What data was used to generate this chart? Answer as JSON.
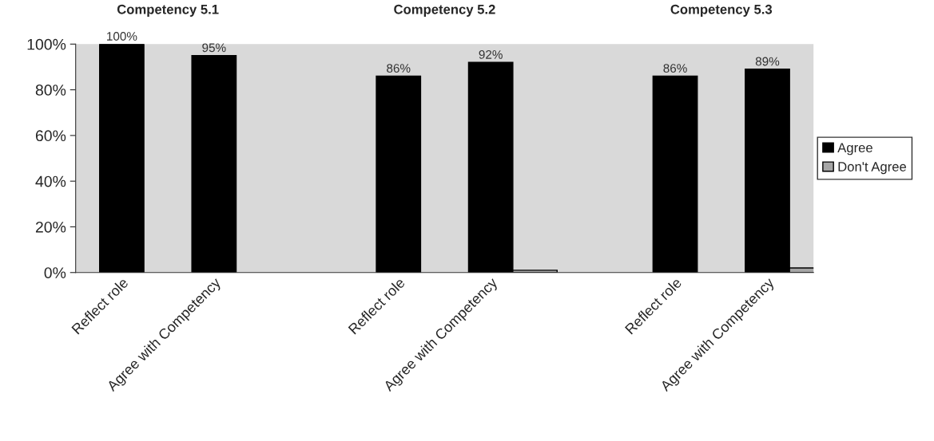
{
  "chart_data": {
    "type": "bar",
    "categories": [
      "Reflect role",
      "Agree with Competency",
      null,
      "Reflect role",
      "Agree with Competency",
      null,
      "Reflect role",
      "Agree with Competency"
    ],
    "series": [
      {
        "name": "Agree",
        "color": "#000000",
        "values": [
          100,
          95,
          null,
          86,
          92,
          null,
          86,
          89
        ],
        "value_labels": [
          "100%",
          "95%",
          null,
          "86%",
          "92%",
          null,
          "86%",
          "89%"
        ]
      },
      {
        "name": "Don't Agree",
        "color": "#a6a6a6",
        "values": [
          null,
          null,
          null,
          null,
          1,
          null,
          null,
          2
        ]
      }
    ],
    "annotations": [
      "Competency 5.1",
      "Competency 5.2",
      "Competency 5.3"
    ],
    "ylim": [
      0,
      100
    ],
    "yticks": [
      {
        "value": 0,
        "label": "0%"
      },
      {
        "value": 20,
        "label": "20%"
      },
      {
        "value": 40,
        "label": "40%"
      },
      {
        "value": 60,
        "label": "60%"
      },
      {
        "value": 80,
        "label": "80%"
      },
      {
        "value": 100,
        "label": "100%"
      }
    ],
    "grid": false,
    "legend": "right"
  }
}
